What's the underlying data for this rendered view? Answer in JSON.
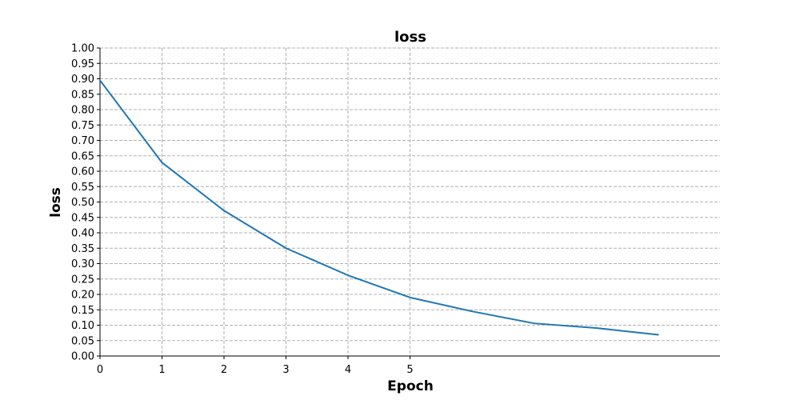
{
  "chart_data": {
    "type": "line",
    "title": "loss",
    "xlabel": "Epoch",
    "ylabel": "loss",
    "xlim": [
      0,
      10
    ],
    "ylim": [
      0,
      1
    ],
    "xticks": [
      0,
      1,
      2,
      3,
      4,
      5
    ],
    "yticks": [
      0,
      0.05,
      0.1,
      0.15,
      0.2,
      0.25,
      0.3,
      0.35,
      0.4,
      0.45,
      0.5,
      0.55,
      0.6,
      0.65,
      0.7,
      0.75,
      0.8,
      0.85,
      0.9,
      0.95,
      1.0
    ],
    "ytick_decimals": 2,
    "grid": true,
    "series": [
      {
        "color": "#1f77b4",
        "x": [
          0,
          1,
          2,
          3,
          4,
          5,
          6,
          7,
          8,
          9
        ],
        "y": [
          0.895,
          0.628,
          0.472,
          0.35,
          0.262,
          0.19,
          0.145,
          0.106,
          0.091,
          0.069
        ]
      }
    ]
  }
}
